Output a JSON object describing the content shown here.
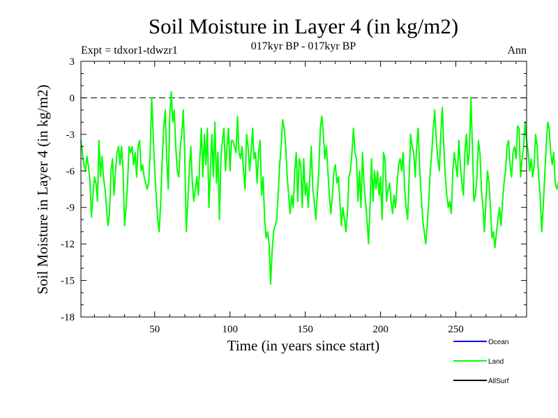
{
  "chart_data": {
    "type": "line",
    "title": "Soil Moisture in Layer 4 (in kg/m2)",
    "subtitle": "017kyr BP - 017kyr BP",
    "experiment": "Expt = tdxor1-tdwzr1",
    "season": "Ann",
    "xlabel": "Time (in years since start)",
    "ylabel": "Soil Moisture in Layer 4 (in kg/m2)",
    "xlim": [
      1,
      297
    ],
    "ylim": [
      -18,
      3
    ],
    "xticks": [
      50,
      100,
      150,
      200,
      250
    ],
    "yticks": [
      3,
      0,
      -3,
      -6,
      -9,
      -12,
      -15,
      -18
    ],
    "reference_line": 0,
    "legend": [
      {
        "name": "Ocean",
        "color": "#0000ff"
      },
      {
        "name": "Land",
        "color": "#00ff00"
      },
      {
        "name": "AllSurf",
        "color": "#000000"
      }
    ],
    "series": [
      {
        "name": "Land",
        "color": "#00ff00",
        "x_start": 1,
        "x_step": 1,
        "values": [
          -3.5,
          -4.5,
          -5.5,
          -6.0,
          -4.8,
          -5.6,
          -6.8,
          -9.8,
          -8.0,
          -6.5,
          -7.0,
          -8.5,
          -3.5,
          -6.5,
          -4.8,
          -6.5,
          -7.5,
          -9.0,
          -10.5,
          -9.5,
          -6.0,
          -5.0,
          -8.0,
          -6.0,
          -4.5,
          -4.0,
          -5.5,
          -4.0,
          -6.0,
          -10.5,
          -9.0,
          -7.0,
          -4.0,
          -4.5,
          -4.0,
          -5.5,
          -4.5,
          -6.5,
          -4.0,
          -3.5,
          -6.0,
          -5.5,
          -6.5,
          -7.0,
          -7.5,
          -7.0,
          -4.5,
          0.0,
          -3.0,
          -6.0,
          -8.0,
          -10.0,
          -11.0,
          -8.5,
          -5.0,
          -2.5,
          -1.0,
          -5.0,
          -7.5,
          -1.5,
          0.5,
          -2.0,
          -1.0,
          -4.0,
          -6.0,
          -6.5,
          -4.0,
          -3.0,
          -1.0,
          -5.0,
          -11.0,
          -8.5,
          -6.0,
          -4.0,
          -7.0,
          -8.5,
          -7.5,
          -6.5,
          -8.0,
          -5.0,
          -2.5,
          -6.5,
          -3.0,
          -5.5,
          -2.5,
          -9.0,
          -6.0,
          -3.0,
          -6.5,
          -2.0,
          -7.0,
          -4.5,
          -10.0,
          -5.0,
          -3.5,
          -2.5,
          -6.0,
          -4.0,
          -2.5,
          -6.0,
          -3.5,
          -3.5,
          -4.0,
          -4.5,
          -1.5,
          -4.5,
          -5.0,
          -4.0,
          -6.0,
          -7.5,
          -3.0,
          -4.0,
          -6.0,
          -4.5,
          -2.5,
          -5.0,
          -4.5,
          -7.0,
          -4.5,
          -3.5,
          -8.0,
          -6.5,
          -10.0,
          -11.5,
          -11.0,
          -12.0,
          -15.3,
          -12.5,
          -11.0,
          -10.5,
          -10.0,
          -8.0,
          -5.5,
          -4.0,
          -1.8,
          -2.5,
          -4.0,
          -6.5,
          -8.0,
          -9.5,
          -8.0,
          -9.0,
          -6.0,
          -4.5,
          -8.5,
          -5.0,
          -5.5,
          -9.0,
          -5.0,
          -8.0,
          -7.0,
          -9.0,
          -6.5,
          -4.0,
          -7.5,
          -8.5,
          -10.0,
          -8.0,
          -6.0,
          -2.5,
          -1.5,
          -3.0,
          -5.0,
          -4.0,
          -6.0,
          -8.0,
          -9.5,
          -8.0,
          -6.0,
          -5.5,
          -7.0,
          -6.5,
          -8.5,
          -10.5,
          -9.0,
          -10.0,
          -11.0,
          -9.5,
          -6.5,
          -6.0,
          -4.5,
          -2.5,
          -4.5,
          -5.0,
          -8.5,
          -6.0,
          -9.0,
          -4.5,
          -7.0,
          -8.5,
          -10.0,
          -12.0,
          -9.0,
          -5.0,
          -8.5,
          -6.0,
          -7.5,
          -6.0,
          -8.0,
          -6.5,
          -10.0,
          -4.5,
          -5.0,
          -8.5,
          -7.5,
          -7.0,
          -8.5,
          -9.5,
          -8.0,
          -9.0,
          -7.0,
          -5.5,
          -5.0,
          -6.0,
          -4.5,
          -7.5,
          -9.0,
          -10.0,
          -6.5,
          -3.0,
          -4.0,
          -4.5,
          -6.5,
          -4.0,
          -2.5,
          -6.0,
          -8.0,
          -10.0,
          -11.0,
          -12.0,
          -10.5,
          -8.5,
          -6.0,
          -4.5,
          -2.5,
          -1.0,
          -3.5,
          -5.0,
          -6.0,
          -3.0,
          -0.8,
          -4.0,
          -6.5,
          -8.0,
          -9.0,
          -8.5,
          -9.5,
          -6.0,
          -4.5,
          -5.5,
          -6.5,
          -3.5,
          -5.5,
          -7.0,
          -8.0,
          -4.5,
          -3.0,
          -5.5,
          -4.5,
          0.0,
          -4.0,
          -8.5,
          -8.0,
          -6.5,
          -3.5,
          -4.5,
          -7.5,
          -9.0,
          -11.0,
          -8.5,
          -6.0,
          -7.0,
          -9.0,
          -11.5,
          -11.0,
          -12.3,
          -11.0,
          -10.0,
          -9.0,
          -10.5,
          -8.5,
          -7.0,
          -6.0,
          -4.0,
          -3.5,
          -5.5,
          -6.5,
          -4.5,
          -4.0,
          -5.0,
          -2.3,
          -2.5,
          -6.5,
          -5.0,
          -4.0,
          -2.0,
          -3.5,
          -4.5,
          -6.0,
          -5.0,
          -6.5,
          -5.5,
          -3.0,
          -4.0,
          -6.5,
          -8.0,
          -11.0,
          -9.0,
          -6.5,
          -4.0,
          -2.0,
          -2.5,
          -4.5,
          -5.5,
          -4.5,
          -7.0,
          -7.5,
          -7.0,
          -6.5,
          -7.0,
          -9.0,
          -10.5,
          -11.5,
          -12.0,
          -10.5,
          -11.0,
          -12.5,
          -11.0,
          -10.5,
          -11.5,
          -11.0,
          -11.5,
          -10.5,
          -11.0,
          -10.0,
          -9.0,
          -8.5,
          -8.0,
          -10.0,
          -11.0,
          -11.5,
          -9.0,
          -10.5,
          -12.0,
          -10.5,
          -8.5,
          -5.5,
          -4.5,
          -7.5,
          -10.0,
          -11.5,
          -10.5,
          -11.0
        ]
      }
    ]
  }
}
